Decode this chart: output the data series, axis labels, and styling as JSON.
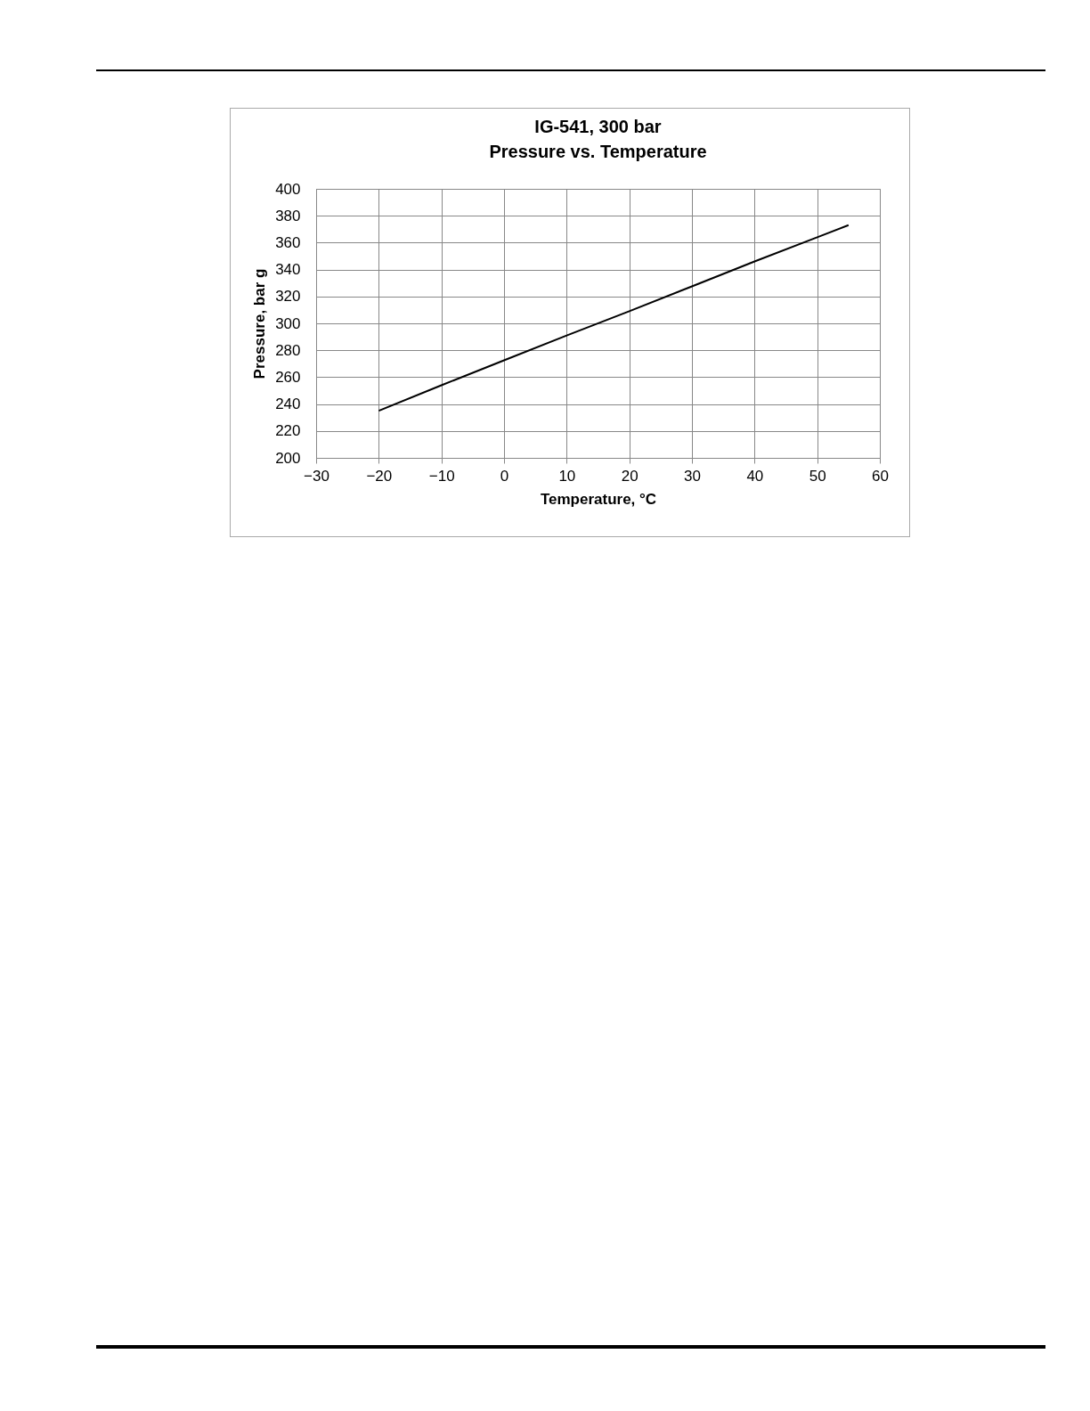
{
  "chart_data": {
    "type": "line",
    "title": "IG-541, 300 bar",
    "subtitle": "Pressure vs. Temperature",
    "xlabel": "Temperature, °C",
    "ylabel": "Pressure, bar g",
    "x": [
      -20,
      -10,
      0,
      10,
      20,
      30,
      40,
      50,
      55
    ],
    "values": [
      235,
      254,
      272.5,
      291,
      309,
      327.5,
      346,
      364,
      373
    ],
    "color": "#000000",
    "xlim": [
      -30,
      60
    ],
    "ylim": [
      200,
      400
    ],
    "xticks": [
      -30,
      -20,
      -10,
      0,
      10,
      20,
      30,
      40,
      50,
      60
    ],
    "yticks": [
      200,
      220,
      240,
      260,
      280,
      300,
      320,
      340,
      360,
      380,
      400
    ],
    "grid": true
  }
}
